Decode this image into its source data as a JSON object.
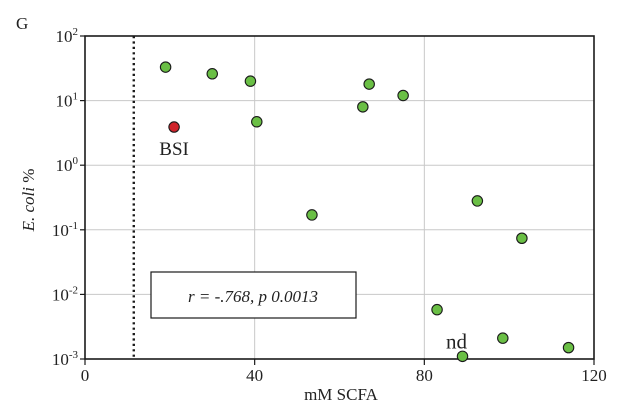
{
  "panel_label": "G",
  "chart_data": {
    "type": "scatter",
    "xlabel": "mM SCFA",
    "ylabel_italic": "E. coli",
    "ylabel_rest": " %",
    "xlim": [
      0,
      120
    ],
    "ylim": [
      0.001,
      100
    ],
    "yscale": "log",
    "x_ticks": [
      0,
      40,
      80,
      120
    ],
    "y_ticks": [
      {
        "value": 0.001,
        "base": "10",
        "exp": "-3"
      },
      {
        "value": 0.01,
        "base": "10",
        "exp": "-2"
      },
      {
        "value": 0.1,
        "base": "10",
        "exp": "-1"
      },
      {
        "value": 1,
        "base": "10",
        "exp": "0"
      },
      {
        "value": 10,
        "base": "10",
        "exp": "1"
      },
      {
        "value": 100,
        "base": "10",
        "exp": "2"
      }
    ],
    "grid": true,
    "threshold_x": 11.5,
    "series": [
      {
        "color": "#6abf45",
        "points": [
          {
            "x": 19,
            "y": 33
          },
          {
            "x": 30,
            "y": 26
          },
          {
            "x": 39,
            "y": 20
          },
          {
            "x": 40.5,
            "y": 4.7
          },
          {
            "x": 53.5,
            "y": 0.17
          },
          {
            "x": 65.5,
            "y": 8
          },
          {
            "x": 67,
            "y": 18
          },
          {
            "x": 75,
            "y": 12
          },
          {
            "x": 83,
            "y": 0.0058
          },
          {
            "x": 89,
            "y": 0.0011
          },
          {
            "x": 92.5,
            "y": 0.28
          },
          {
            "x": 98.5,
            "y": 0.0021
          },
          {
            "x": 103,
            "y": 0.074
          },
          {
            "x": 114,
            "y": 0.0015
          }
        ]
      },
      {
        "color": "#d0242b",
        "points": [
          {
            "x": 21,
            "y": 3.9
          }
        ]
      }
    ],
    "annotations": [
      {
        "id": "bsi",
        "text": "BSI",
        "x": 21,
        "y": 3.9
      },
      {
        "id": "nd",
        "text": "nd",
        "x": 89,
        "y": 0.0011
      }
    ],
    "stat_box": {
      "text": "r = -.768, p 0.0013"
    }
  }
}
